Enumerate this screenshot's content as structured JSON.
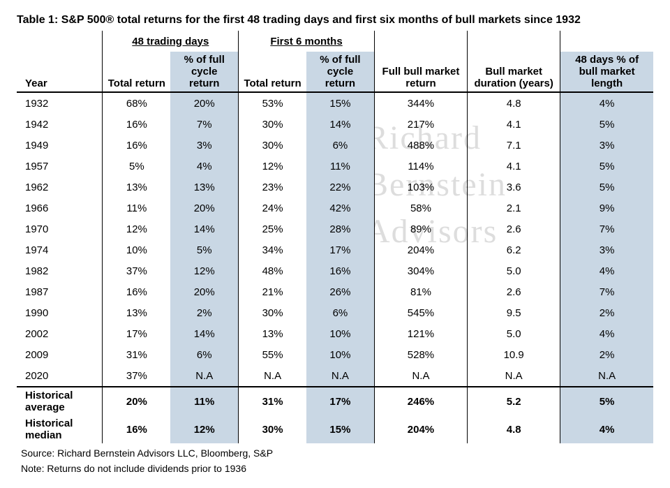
{
  "title": "Table 1: S&P 500® total returns for the first 48 trading days and first six months of bull markets since 1932",
  "group_headers": {
    "g48": "48 trading days",
    "g6m": "First 6 months"
  },
  "columns": {
    "year": "Year",
    "tr48": "Total return",
    "pct48": "% of full cycle return",
    "tr6m": "Total return",
    "pct6m": "% of full cycle return",
    "fullret": "Full bull market return",
    "duration": "Bull market duration (years)",
    "pctlen": "48 days % of bull market length"
  },
  "rows": [
    {
      "year": "1932",
      "tr48": "68%",
      "pct48": "20%",
      "tr6m": "53%",
      "pct6m": "15%",
      "fullret": "344%",
      "duration": "4.8",
      "pctlen": "4%"
    },
    {
      "year": "1942",
      "tr48": "16%",
      "pct48": "7%",
      "tr6m": "30%",
      "pct6m": "14%",
      "fullret": "217%",
      "duration": "4.1",
      "pctlen": "5%"
    },
    {
      "year": "1949",
      "tr48": "16%",
      "pct48": "3%",
      "tr6m": "30%",
      "pct6m": "6%",
      "fullret": "488%",
      "duration": "7.1",
      "pctlen": "3%"
    },
    {
      "year": "1957",
      "tr48": "5%",
      "pct48": "4%",
      "tr6m": "12%",
      "pct6m": "11%",
      "fullret": "114%",
      "duration": "4.1",
      "pctlen": "5%"
    },
    {
      "year": "1962",
      "tr48": "13%",
      "pct48": "13%",
      "tr6m": "23%",
      "pct6m": "22%",
      "fullret": "103%",
      "duration": "3.6",
      "pctlen": "5%"
    },
    {
      "year": "1966",
      "tr48": "11%",
      "pct48": "20%",
      "tr6m": "24%",
      "pct6m": "42%",
      "fullret": "58%",
      "duration": "2.1",
      "pctlen": "9%"
    },
    {
      "year": "1970",
      "tr48": "12%",
      "pct48": "14%",
      "tr6m": "25%",
      "pct6m": "28%",
      "fullret": "89%",
      "duration": "2.6",
      "pctlen": "7%"
    },
    {
      "year": "1974",
      "tr48": "10%",
      "pct48": "5%",
      "tr6m": "34%",
      "pct6m": "17%",
      "fullret": "204%",
      "duration": "6.2",
      "pctlen": "3%"
    },
    {
      "year": "1982",
      "tr48": "37%",
      "pct48": "12%",
      "tr6m": "48%",
      "pct6m": "16%",
      "fullret": "304%",
      "duration": "5.0",
      "pctlen": "4%"
    },
    {
      "year": "1987",
      "tr48": "16%",
      "pct48": "20%",
      "tr6m": "21%",
      "pct6m": "26%",
      "fullret": "81%",
      "duration": "2.6",
      "pctlen": "7%"
    },
    {
      "year": "1990",
      "tr48": "13%",
      "pct48": "2%",
      "tr6m": "30%",
      "pct6m": "6%",
      "fullret": "545%",
      "duration": "9.5",
      "pctlen": "2%"
    },
    {
      "year": "2002",
      "tr48": "17%",
      "pct48": "14%",
      "tr6m": "13%",
      "pct6m": "10%",
      "fullret": "121%",
      "duration": "5.0",
      "pctlen": "4%"
    },
    {
      "year": "2009",
      "tr48": "31%",
      "pct48": "6%",
      "tr6m": "55%",
      "pct6m": "10%",
      "fullret": "528%",
      "duration": "10.9",
      "pctlen": "2%"
    },
    {
      "year": "2020",
      "tr48": "37%",
      "pct48": "N.A",
      "tr6m": "N.A",
      "pct6m": "N.A",
      "fullret": "N.A",
      "duration": "N.A",
      "pctlen": "N.A"
    }
  ],
  "summary": [
    {
      "label": "Historical average",
      "tr48": "20%",
      "pct48": "11%",
      "tr6m": "31%",
      "pct6m": "17%",
      "fullret": "246%",
      "duration": "5.2",
      "pctlen": "5%"
    },
    {
      "label": "Historical median",
      "tr48": "16%",
      "pct48": "12%",
      "tr6m": "30%",
      "pct6m": "15%",
      "fullret": "204%",
      "duration": "4.8",
      "pctlen": "4%"
    }
  ],
  "footnotes": {
    "source": "Source: Richard Bernstein Advisors LLC, Bloomberg, S&P",
    "note": "Note: Returns do not include dividends prior to 1936"
  },
  "watermark": {
    "line1": "Richard",
    "line2": "Bernstein",
    "line3": "Advisors"
  },
  "style": {
    "shaded_bg": "#c9d7e4",
    "border_color": "#000000",
    "text_color": "#000000",
    "font_family": "Arial",
    "title_fontsize": 16,
    "body_fontsize": 15
  }
}
